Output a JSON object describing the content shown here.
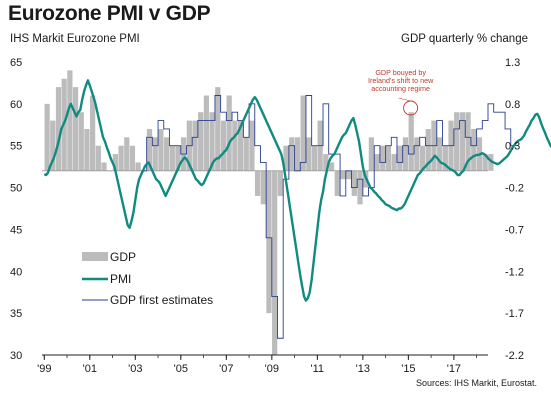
{
  "header": {
    "title": "Eurozone PMI v GDP",
    "left_axis_label": "IHS Markit Eurozone PMI",
    "right_axis_label": "GDP quarterly % change",
    "source": "Sources: IHS Markit, Eurostat."
  },
  "colors": {
    "gdp_bars": "#bcbcbc",
    "pmi_line": "#0f8b7f",
    "first_estimates_line": "#2a3f8f",
    "annotation": "#c0392b",
    "axis": "#222222"
  },
  "chart_data": {
    "type": "bar+line",
    "title": "Eurozone PMI v GDP",
    "ylabel": "IHS Markit Eurozone PMI",
    "y2label": "GDP quarterly % change",
    "x_tick_labels": [
      "'99",
      "'01",
      "'03",
      "'05",
      "'07",
      "'09",
      "'11",
      "'13",
      "'15",
      "'17"
    ],
    "x_tick_years": [
      1999,
      2001,
      2003,
      2005,
      2007,
      2009,
      2011,
      2013,
      2015,
      2017
    ],
    "xlim": [
      1998.9,
      2018.5
    ],
    "ylim": [
      30,
      65
    ],
    "y_ticks": [
      30,
      35,
      40,
      45,
      50,
      55,
      60,
      65
    ],
    "y2lim": [
      -2.2,
      1.3
    ],
    "y2_ticks": [
      -2.2,
      -1.7,
      -1.2,
      -0.7,
      -0.2,
      0.3,
      0.8,
      1.3
    ],
    "legend": {
      "position": "bottom-left",
      "entries": [
        "GDP",
        "PMI",
        "GDP first estimates"
      ]
    },
    "annotation": {
      "text": [
        "GDP bouyed by",
        "Ireland's shift to new",
        "accounting regime"
      ],
      "x": 2015.1,
      "y": 0.75
    },
    "gdp_quarterly": {
      "name": "GDP",
      "start": 1999.0,
      "step": 0.25,
      "values": [
        0.8,
        0.6,
        1.0,
        1.1,
        1.2,
        1.0,
        0.7,
        0.5,
        0.9,
        0.3,
        0.1,
        0.0,
        0.2,
        0.3,
        0.4,
        0.3,
        0.1,
        0.0,
        0.5,
        0.4,
        0.5,
        0.4,
        0.3,
        0.3,
        0.4,
        0.6,
        0.6,
        0.7,
        0.9,
        0.7,
        1.0,
        0.6,
        0.9,
        0.6,
        0.6,
        0.4,
        0.6,
        -0.3,
        -0.4,
        -1.7,
        -2.2,
        -0.3,
        0.3,
        0.4,
        0.4,
        0.9,
        0.4,
        0.3,
        0.6,
        0.2,
        0.1,
        -0.3,
        -0.1,
        -0.1,
        -0.3,
        -0.4,
        -0.2,
        0.4,
        0.2,
        0.3,
        0.3,
        0.2,
        0.3,
        0.4,
        0.7,
        0.4,
        0.3,
        0.5,
        0.6,
        0.4,
        0.3,
        0.6,
        0.7,
        0.7,
        0.7,
        0.5,
        0.4,
        0.2,
        0.2
      ]
    },
    "pmi_monthly": {
      "name": "PMI",
      "start": 1999.0,
      "step": 0.08333,
      "values": [
        51.6,
        51.5,
        51.8,
        52.5,
        53.0,
        53.5,
        54.2,
        55.0,
        56.0,
        57.0,
        57.5,
        58.0,
        58.7,
        59.5,
        60.0,
        59.5,
        59.0,
        58.5,
        59.0,
        59.3,
        60.5,
        61.5,
        62.2,
        62.8,
        62.2,
        61.5,
        60.8,
        60.0,
        59.0,
        58.0,
        57.0,
        56.0,
        55.5,
        54.8,
        54.2,
        53.5,
        53.0,
        52.5,
        51.5,
        50.5,
        49.5,
        48.5,
        47.5,
        46.5,
        45.5,
        45.2,
        46.0,
        47.0,
        48.5,
        50.0,
        51.0,
        51.5,
        52.0,
        52.5,
        52.8,
        53.0,
        52.5,
        52.0,
        51.5,
        51.0,
        50.8,
        50.5,
        50.0,
        49.5,
        49.0,
        49.5,
        50.0,
        50.5,
        51.0,
        51.5,
        52.0,
        52.5,
        53.0,
        53.3,
        53.6,
        53.4,
        53.0,
        52.5,
        52.0,
        51.5,
        51.0,
        50.8,
        50.5,
        50.3,
        50.5,
        51.0,
        51.5,
        52.0,
        52.5,
        53.0,
        53.3,
        53.5,
        53.5,
        53.8,
        54.0,
        54.3,
        54.5,
        55.0,
        55.5,
        55.8,
        56.0,
        56.3,
        56.5,
        57.0,
        57.5,
        58.0,
        58.5,
        59.0,
        59.5,
        60.0,
        60.5,
        60.8,
        60.5,
        60.0,
        59.5,
        59.0,
        58.5,
        58.0,
        57.5,
        57.0,
        56.5,
        56.0,
        55.5,
        55.0,
        54.5,
        54.0,
        53.0,
        51.5,
        50.0,
        48.5,
        47.0,
        45.5,
        44.0,
        42.5,
        41.0,
        39.5,
        38.2,
        37.0,
        36.5,
        36.8,
        37.5,
        39.0,
        41.0,
        43.0,
        45.0,
        47.0,
        48.5,
        49.5,
        51.0,
        52.0,
        53.0,
        53.5,
        53.8,
        54.0,
        54.5,
        55.0,
        55.5,
        56.0,
        56.3,
        56.5,
        57.0,
        57.5,
        58.0,
        58.3,
        57.5,
        56.5,
        55.5,
        54.0,
        52.5,
        51.5,
        51.0,
        50.5,
        50.0,
        49.8,
        49.5,
        49.3,
        49.0,
        48.8,
        48.5,
        48.3,
        48.0,
        47.9,
        47.8,
        47.6,
        47.5,
        47.4,
        47.3,
        47.5,
        47.5,
        47.7,
        48.0,
        48.5,
        49.0,
        49.5,
        50.0,
        50.5,
        51.0,
        51.5,
        51.7,
        52.0,
        52.3,
        52.5,
        52.8,
        53.0,
        53.2,
        53.5,
        53.8,
        53.6,
        53.3,
        53.0,
        52.9,
        52.8,
        52.6,
        52.4,
        52.2,
        52.1,
        52.0,
        51.8,
        51.5,
        51.5,
        51.8,
        52.0,
        52.5,
        53.0,
        53.3,
        53.5,
        53.7,
        53.8,
        53.9,
        53.9,
        54.0,
        54.1,
        54.0,
        53.8,
        53.5,
        53.3,
        53.1,
        53.0,
        52.9,
        52.8,
        52.9,
        53.1,
        53.3,
        53.5,
        53.7,
        54.0,
        54.4,
        54.8,
        55.1,
        55.4,
        55.6,
        55.7,
        55.9,
        56.2,
        56.7,
        57.1,
        57.5,
        58.0,
        58.3,
        58.7,
        58.8,
        58.4,
        57.7,
        57.1,
        56.6,
        56.0,
        55.5,
        55.0,
        54.7,
        54.5,
        54.6
      ]
    },
    "gdp_first_estimates": {
      "name": "GDP first estimates",
      "start": 2003.25,
      "step": 0.25,
      "values": [
        0.0,
        0.4,
        0.3,
        0.6,
        0.5,
        0.3,
        0.3,
        0.2,
        0.3,
        0.4,
        0.6,
        0.6,
        0.6,
        0.9,
        0.7,
        0.6,
        0.7,
        0.6,
        0.4,
        0.8,
        0.3,
        0.1,
        -0.8,
        -1.5,
        -2.0,
        -0.1,
        0.3,
        0.0,
        0.1,
        0.9,
        0.3,
        0.3,
        0.8,
        0.2,
        0.2,
        -0.3,
        0.0,
        -0.2,
        -0.1,
        -0.3,
        -0.2,
        0.3,
        0.1,
        0.3,
        0.4,
        0.1,
        0.3,
        0.2,
        0.3,
        0.4,
        0.3,
        0.3,
        0.6,
        0.3,
        0.3,
        0.5,
        0.6,
        0.4,
        0.3,
        0.5,
        0.6,
        0.8,
        0.7,
        0.7,
        0.5,
        0.3
      ]
    }
  }
}
